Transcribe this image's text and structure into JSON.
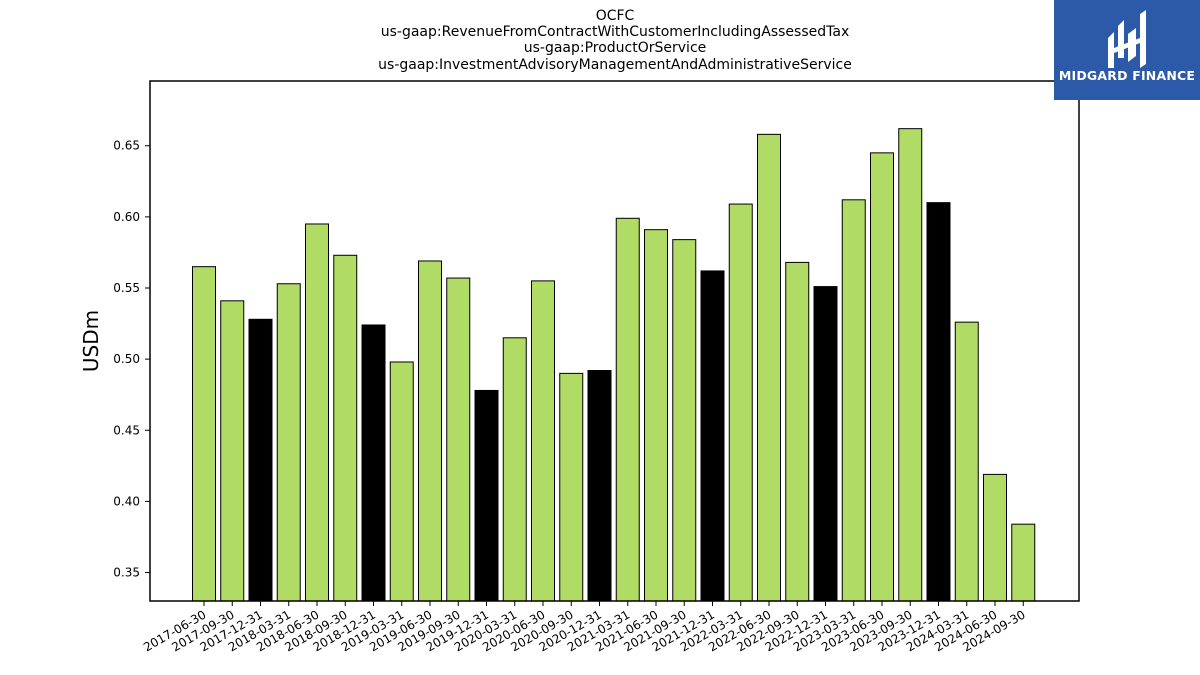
{
  "brand": {
    "name": "MIDGARD FINANCE",
    "color": "#2d5aa8",
    "icon": "midgard-logo-icon"
  },
  "chart_data": {
    "type": "bar",
    "title_lines": [
      "OCFC",
      "us-gaap:RevenueFromContractWithCustomerIncludingAssessedTax",
      "us-gaap:ProductOrService",
      "us-gaap:InvestmentAdvisoryManagementAndAdministrativeService"
    ],
    "xlabel": "",
    "ylabel": "USDm",
    "ylim": [
      0.33,
      0.6955
    ],
    "yticks": [
      0.35,
      0.4,
      0.45,
      0.5,
      0.55,
      0.6,
      0.65
    ],
    "ytick_labels": [
      "0.35",
      "0.40",
      "0.45",
      "0.50",
      "0.55",
      "0.60",
      "0.65"
    ],
    "grid": false,
    "colors": {
      "quarter": "#b0db65",
      "year_end": "#000000",
      "edge": "#000000"
    },
    "categories": [
      "2017-06-30",
      "2017-09-30",
      "2017-12-31",
      "2018-03-31",
      "2018-06-30",
      "2018-09-30",
      "2018-12-31",
      "2019-03-31",
      "2019-06-30",
      "2019-09-30",
      "2019-12-31",
      "2020-03-31",
      "2020-06-30",
      "2020-09-30",
      "2020-12-31",
      "2021-03-31",
      "2021-06-30",
      "2021-09-30",
      "2021-12-31",
      "2022-03-31",
      "2022-06-30",
      "2022-09-30",
      "2022-12-31",
      "2023-03-31",
      "2023-06-30",
      "2023-09-30",
      "2023-12-31",
      "2024-03-31",
      "2024-06-30",
      "2024-09-30"
    ],
    "values": [
      0.565,
      0.541,
      0.528,
      0.553,
      0.595,
      0.573,
      0.524,
      0.498,
      0.569,
      0.557,
      0.478,
      0.515,
      0.555,
      0.49,
      0.492,
      0.599,
      0.591,
      0.584,
      0.562,
      0.609,
      0.658,
      0.568,
      0.551,
      0.612,
      0.645,
      0.662,
      0.61,
      0.526,
      0.419,
      0.384
    ],
    "year_end_flags": [
      false,
      false,
      true,
      false,
      false,
      false,
      true,
      false,
      false,
      false,
      true,
      false,
      false,
      false,
      true,
      false,
      false,
      false,
      true,
      false,
      false,
      false,
      true,
      false,
      false,
      false,
      true,
      false,
      false,
      false
    ]
  }
}
